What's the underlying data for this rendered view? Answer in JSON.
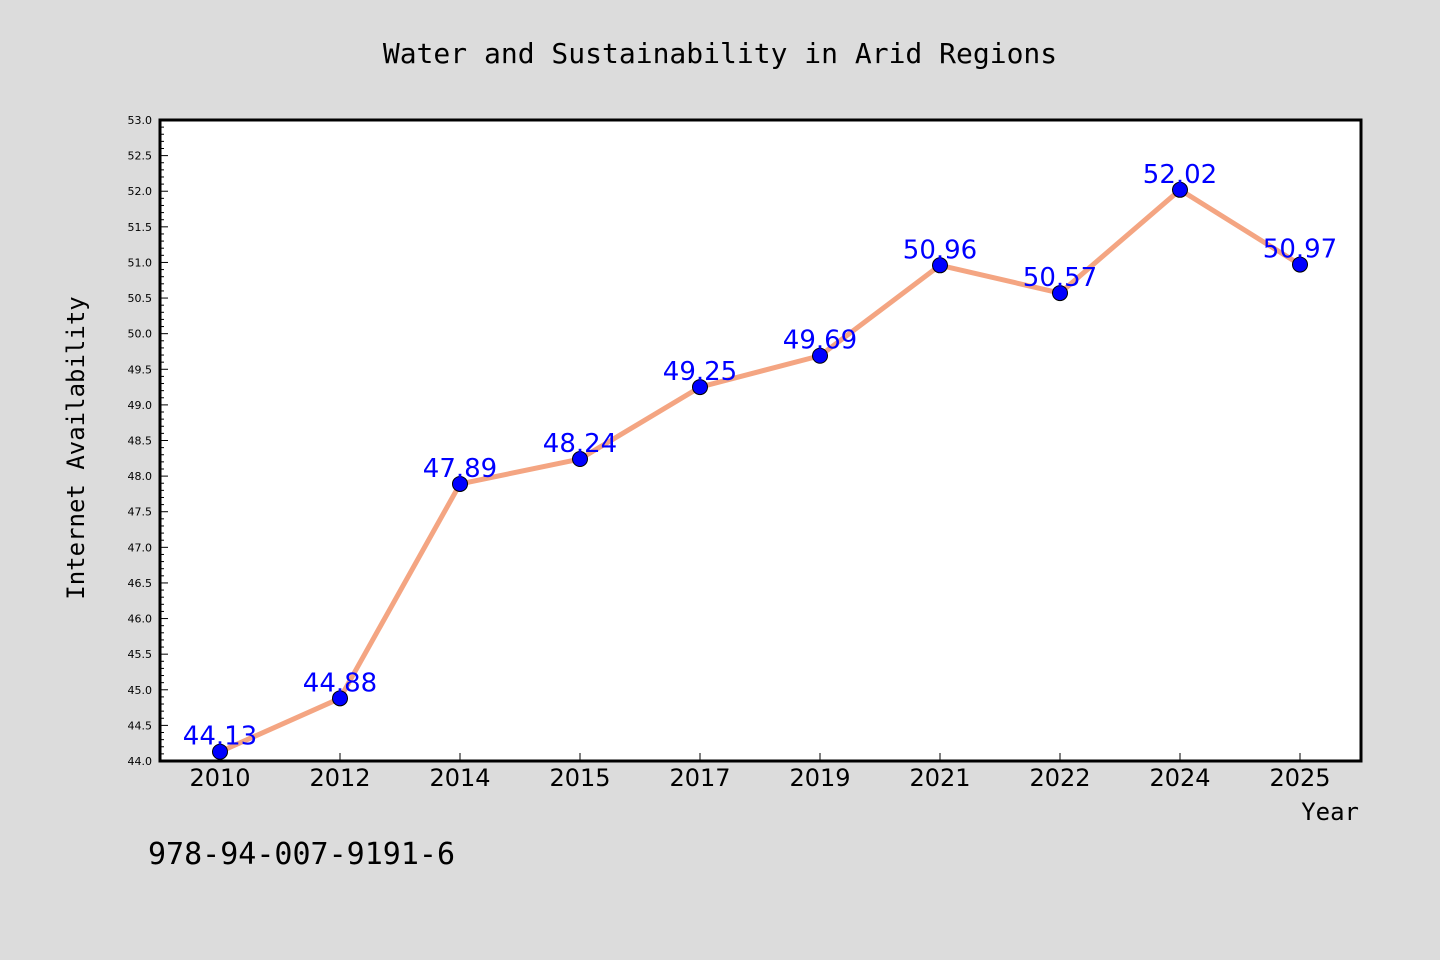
{
  "chart_data": {
    "type": "line",
    "title": "Water and Sustainability in Arid Regions",
    "xlabel": "Year",
    "ylabel": "Internet Availability",
    "categories": [
      "2010",
      "2012",
      "2014",
      "2015",
      "2017",
      "2019",
      "2021",
      "2022",
      "2024",
      "2025"
    ],
    "series": [
      {
        "values": [
          44.13,
          44.88,
          47.89,
          48.24,
          49.25,
          49.69,
          50.96,
          50.57,
          52.02,
          50.97
        ],
        "data_labels": [
          "44.13",
          "44.88",
          "47.89",
          "48.24",
          "49.25",
          "49.69",
          "50.96",
          "50.57",
          "52.02",
          "50.97"
        ]
      }
    ],
    "ylim": [
      44.0,
      53.0
    ],
    "yticks": [
      "44.0",
      "44.5",
      "45.0",
      "45.5",
      "46.0",
      "46.5",
      "47.0",
      "47.5",
      "48.0",
      "48.5",
      "49.0",
      "49.5",
      "50.0",
      "50.5",
      "51.0",
      "51.5",
      "52.0",
      "52.5",
      "53.0"
    ],
    "grid": false,
    "legend": false,
    "colors": {
      "line": "#f4a582",
      "marker": "#0000ff",
      "data_label": "#0000ff",
      "background": "#dcdcdc",
      "plot_background": "#ffffff"
    }
  },
  "annotation": "978-94-007-9191-6"
}
